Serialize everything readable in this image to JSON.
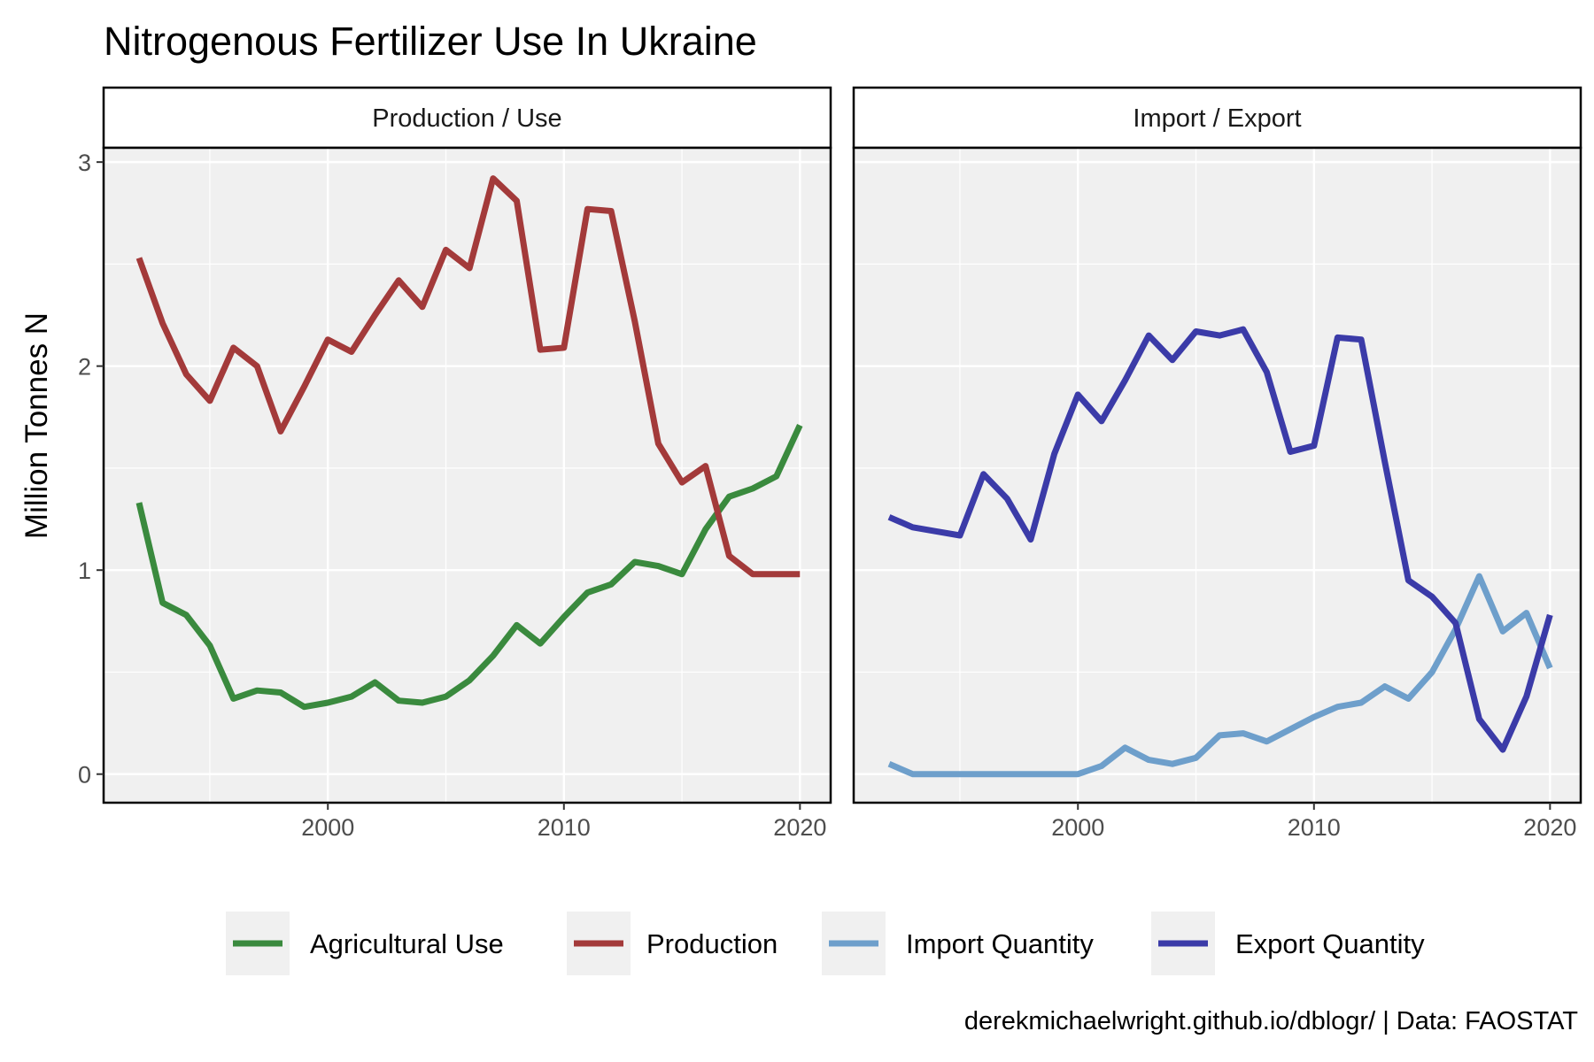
{
  "title": "Nitrogenous Fertilizer Use In Ukraine",
  "caption": "derekmichaelwright.github.io/dblogr/ | Data: FAOSTAT",
  "colors": {
    "panel_background": "#f0f0f0",
    "grid": "#ffffff",
    "Agricultural Use": "#3a8a3e",
    "Production": "#a33a3a",
    "Import Quantity": "#6e9fcb",
    "Export Quantity": "#3b3ba8"
  },
  "legend": {
    "position": "bottom",
    "items": [
      "Agricultural Use",
      "Production",
      "Import Quantity",
      "Export Quantity"
    ]
  },
  "chart_data": [
    {
      "type": "line",
      "facet_label": "Production / Use",
      "xlabel": "",
      "ylabel": "Million Tonnes N",
      "xlim": [
        1992,
        2020
      ],
      "ylim": [
        0,
        3
      ],
      "x_ticks": [
        2000,
        2010,
        2020
      ],
      "y_ticks": [
        0,
        1,
        2,
        3
      ],
      "grid": true,
      "x": [
        1992,
        1993,
        1994,
        1995,
        1996,
        1997,
        1998,
        1999,
        2000,
        2001,
        2002,
        2003,
        2004,
        2005,
        2006,
        2007,
        2008,
        2009,
        2010,
        2011,
        2012,
        2013,
        2014,
        2015,
        2016,
        2017,
        2018,
        2019,
        2020
      ],
      "series": [
        {
          "name": "Agricultural Use",
          "values": [
            1.33,
            0.84,
            0.78,
            0.63,
            0.37,
            0.41,
            0.4,
            0.33,
            0.35,
            0.38,
            0.45,
            0.36,
            0.35,
            0.38,
            0.46,
            0.58,
            0.73,
            0.64,
            0.77,
            0.89,
            0.93,
            1.04,
            1.02,
            0.98,
            1.2,
            1.36,
            1.4,
            1.46,
            1.71
          ]
        },
        {
          "name": "Production",
          "values": [
            2.53,
            2.21,
            1.96,
            1.83,
            2.09,
            2.0,
            1.68,
            1.9,
            2.13,
            2.07,
            2.25,
            2.42,
            2.29,
            2.57,
            2.48,
            2.92,
            2.81,
            2.08,
            2.09,
            2.77,
            2.76,
            2.22,
            1.62,
            1.43,
            1.51,
            1.07,
            0.98,
            0.98,
            0.98
          ]
        }
      ]
    },
    {
      "type": "line",
      "facet_label": "Import / Export",
      "xlabel": "",
      "ylabel": "Million Tonnes N",
      "xlim": [
        1992,
        2020
      ],
      "ylim": [
        0,
        3
      ],
      "x_ticks": [
        2000,
        2010,
        2020
      ],
      "y_ticks": [
        0,
        1,
        2,
        3
      ],
      "grid": true,
      "x": [
        1992,
        1993,
        1994,
        1995,
        1996,
        1997,
        1998,
        1999,
        2000,
        2001,
        2002,
        2003,
        2004,
        2005,
        2006,
        2007,
        2008,
        2009,
        2010,
        2011,
        2012,
        2013,
        2014,
        2015,
        2016,
        2017,
        2018,
        2019,
        2020
      ],
      "series": [
        {
          "name": "Import Quantity",
          "values": [
            0.05,
            0.0,
            0.0,
            0.0,
            0.0,
            0.0,
            0.0,
            0.0,
            0.0,
            0.04,
            0.13,
            0.07,
            0.05,
            0.08,
            0.19,
            0.2,
            0.16,
            0.22,
            0.28,
            0.33,
            0.35,
            0.43,
            0.37,
            0.5,
            0.71,
            0.97,
            0.7,
            0.79,
            0.52
          ]
        },
        {
          "name": "Export Quantity",
          "values": [
            1.26,
            1.21,
            1.19,
            1.17,
            1.47,
            1.35,
            1.15,
            1.57,
            1.86,
            1.73,
            1.93,
            2.15,
            2.03,
            2.17,
            2.15,
            2.18,
            1.97,
            1.58,
            1.61,
            2.14,
            2.13,
            1.53,
            0.95,
            0.87,
            0.74,
            0.27,
            0.12,
            0.38,
            0.78
          ]
        }
      ]
    }
  ]
}
